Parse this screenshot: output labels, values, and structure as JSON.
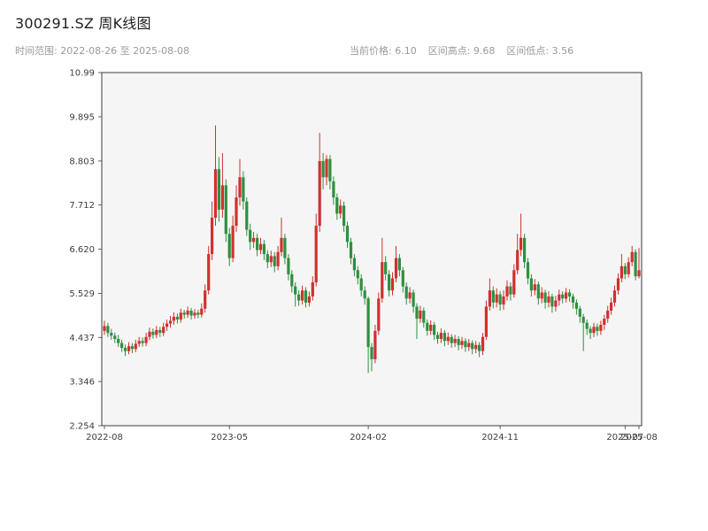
{
  "header": {
    "title": "300291.SZ 周K线图",
    "time_range": "时间范围: 2022-08-26 至 2025-08-08",
    "stats": [
      "当前价格: 6.10",
      "区间高点: 9.68",
      "区间低点: 3.56"
    ]
  },
  "chart_data": {
    "type": "candlestick",
    "title": "300291.SZ 周K线图",
    "frequency": "weekly",
    "date_range": [
      "2022-08-26",
      "2025-08-08"
    ],
    "current_price": 6.1,
    "range_high": 9.68,
    "range_low": 3.56,
    "xlabel": "",
    "ylabel": "",
    "grid": false,
    "ylim": [
      2.254,
      10.99
    ],
    "plot_bg": "#f5f5f5",
    "up_color": "#d03030",
    "down_color": "#2f8f3f",
    "y_ticks": [
      {
        "label": "10.99",
        "value": 10.99
      },
      {
        "label": "9.895",
        "value": 9.895
      },
      {
        "label": "8.803",
        "value": 8.803
      },
      {
        "label": "7.712",
        "value": 7.712
      },
      {
        "label": "6.620",
        "value": 6.62
      },
      {
        "label": "5.529",
        "value": 5.529
      },
      {
        "label": "4.437",
        "value": 4.437
      },
      {
        "label": "3.346",
        "value": 3.346
      },
      {
        "label": "2.254",
        "value": 2.254
      }
    ],
    "x_ticks": [
      {
        "label": "2022-08",
        "index": 0
      },
      {
        "label": "2023-05",
        "index": 36
      },
      {
        "label": "2024-02",
        "index": 76
      },
      {
        "label": "2024-11",
        "index": 114
      },
      {
        "label": "2025-07",
        "index": 150
      },
      {
        "label": "2025-08",
        "index": 154
      }
    ],
    "ohlc_format": [
      "open",
      "high",
      "low",
      "close"
    ],
    "ohlc": [
      [
        4.6,
        4.85,
        4.5,
        4.72
      ],
      [
        4.72,
        4.8,
        4.45,
        4.55
      ],
      [
        4.55,
        4.65,
        4.38,
        4.48
      ],
      [
        4.48,
        4.56,
        4.3,
        4.4
      ],
      [
        4.4,
        4.5,
        4.2,
        4.3
      ],
      [
        4.3,
        4.38,
        4.08,
        4.18
      ],
      [
        4.18,
        4.26,
        3.98,
        4.1
      ],
      [
        4.1,
        4.32,
        4.02,
        4.22
      ],
      [
        4.22,
        4.3,
        4.05,
        4.15
      ],
      [
        4.15,
        4.38,
        4.07,
        4.28
      ],
      [
        4.28,
        4.45,
        4.2,
        4.35
      ],
      [
        4.35,
        4.44,
        4.21,
        4.3
      ],
      [
        4.3,
        4.55,
        4.22,
        4.45
      ],
      [
        4.45,
        4.68,
        4.37,
        4.58
      ],
      [
        4.58,
        4.66,
        4.41,
        4.5
      ],
      [
        4.5,
        4.72,
        4.42,
        4.62
      ],
      [
        4.62,
        4.7,
        4.45,
        4.55
      ],
      [
        4.55,
        4.8,
        4.47,
        4.7
      ],
      [
        4.7,
        4.88,
        4.6,
        4.78
      ],
      [
        4.78,
        4.97,
        4.68,
        4.85
      ],
      [
        4.85,
        5.06,
        4.75,
        4.95
      ],
      [
        4.95,
        5.03,
        4.78,
        4.88
      ],
      [
        4.88,
        5.15,
        4.8,
        5.05
      ],
      [
        5.05,
        5.12,
        4.9,
        5.0
      ],
      [
        5.0,
        5.2,
        4.92,
        5.1
      ],
      [
        5.1,
        5.17,
        4.88,
        4.98
      ],
      [
        4.98,
        5.14,
        4.9,
        5.05
      ],
      [
        5.05,
        5.12,
        4.91,
        5.0
      ],
      [
        5.0,
        5.28,
        4.93,
        5.15
      ],
      [
        5.15,
        5.75,
        5.05,
        5.6
      ],
      [
        5.6,
        6.7,
        5.5,
        6.5
      ],
      [
        6.5,
        7.8,
        6.35,
        7.4
      ],
      [
        7.4,
        9.68,
        7.2,
        8.6
      ],
      [
        8.6,
        8.9,
        7.3,
        7.6
      ],
      [
        7.6,
        9.0,
        7.4,
        8.2
      ],
      [
        8.2,
        8.35,
        6.8,
        7.0
      ],
      [
        7.0,
        7.15,
        6.2,
        6.4
      ],
      [
        6.4,
        7.45,
        6.3,
        7.2
      ],
      [
        7.2,
        8.2,
        7.05,
        7.9
      ],
      [
        7.9,
        8.85,
        7.7,
        8.4
      ],
      [
        8.4,
        8.55,
        7.6,
        7.8
      ],
      [
        7.8,
        7.9,
        6.95,
        7.1
      ],
      [
        7.1,
        7.25,
        6.6,
        6.8
      ],
      [
        6.8,
        7.05,
        6.65,
        6.9
      ],
      [
        6.9,
        7.0,
        6.45,
        6.6
      ],
      [
        6.6,
        6.9,
        6.5,
        6.75
      ],
      [
        6.75,
        6.85,
        6.35,
        6.5
      ],
      [
        6.5,
        6.6,
        6.15,
        6.3
      ],
      [
        6.3,
        6.58,
        6.18,
        6.45
      ],
      [
        6.45,
        6.55,
        6.05,
        6.2
      ],
      [
        6.2,
        6.7,
        6.1,
        6.55
      ],
      [
        6.55,
        7.4,
        6.45,
        6.9
      ],
      [
        6.9,
        7.0,
        6.25,
        6.4
      ],
      [
        6.4,
        6.5,
        5.85,
        6.0
      ],
      [
        6.0,
        6.1,
        5.55,
        5.7
      ],
      [
        5.7,
        5.8,
        5.2,
        5.5
      ],
      [
        5.5,
        5.6,
        5.22,
        5.35
      ],
      [
        5.35,
        5.72,
        5.25,
        5.6
      ],
      [
        5.6,
        5.68,
        5.18,
        5.3
      ],
      [
        5.3,
        5.57,
        5.2,
        5.45
      ],
      [
        5.45,
        5.95,
        5.35,
        5.8
      ],
      [
        5.8,
        7.5,
        5.7,
        7.2
      ],
      [
        7.2,
        9.5,
        7.05,
        8.8
      ],
      [
        8.8,
        9.0,
        8.1,
        8.4
      ],
      [
        8.4,
        8.95,
        8.2,
        8.85
      ],
      [
        8.85,
        8.95,
        8.1,
        8.3
      ],
      [
        8.3,
        8.42,
        7.72,
        7.9
      ],
      [
        7.9,
        8.0,
        7.35,
        7.5
      ],
      [
        7.5,
        7.85,
        7.38,
        7.7
      ],
      [
        7.7,
        7.8,
        7.05,
        7.2
      ],
      [
        7.2,
        7.3,
        6.65,
        6.8
      ],
      [
        6.8,
        6.9,
        6.25,
        6.4
      ],
      [
        6.4,
        6.5,
        5.95,
        6.1
      ],
      [
        6.1,
        6.2,
        5.75,
        5.9
      ],
      [
        5.9,
        6.0,
        5.45,
        5.6
      ],
      [
        5.6,
        5.7,
        5.25,
        5.4
      ],
      [
        5.4,
        5.45,
        3.56,
        4.2
      ],
      [
        4.2,
        4.3,
        3.6,
        3.9
      ],
      [
        3.9,
        4.75,
        3.8,
        4.6
      ],
      [
        4.6,
        5.55,
        4.5,
        5.4
      ],
      [
        5.4,
        6.9,
        5.3,
        6.3
      ],
      [
        6.3,
        6.45,
        5.85,
        6.0
      ],
      [
        6.0,
        6.1,
        5.45,
        5.6
      ],
      [
        5.6,
        6.05,
        5.48,
        5.9
      ],
      [
        5.9,
        6.7,
        5.8,
        6.4
      ],
      [
        6.4,
        6.5,
        5.95,
        6.1
      ],
      [
        6.1,
        6.18,
        5.55,
        5.7
      ],
      [
        5.7,
        5.8,
        5.25,
        5.4
      ],
      [
        5.4,
        5.68,
        5.28,
        5.55
      ],
      [
        5.55,
        5.62,
        5.05,
        5.2
      ],
      [
        5.2,
        5.28,
        4.4,
        4.9
      ],
      [
        4.9,
        5.22,
        4.8,
        5.1
      ],
      [
        5.1,
        5.18,
        4.68,
        4.8
      ],
      [
        4.8,
        4.88,
        4.48,
        4.6
      ],
      [
        4.6,
        4.86,
        4.5,
        4.75
      ],
      [
        4.75,
        4.82,
        4.38,
        4.5
      ],
      [
        4.5,
        4.58,
        4.28,
        4.4
      ],
      [
        4.4,
        4.66,
        4.3,
        4.55
      ],
      [
        4.55,
        4.62,
        4.22,
        4.35
      ],
      [
        4.35,
        4.56,
        4.25,
        4.45
      ],
      [
        4.45,
        4.52,
        4.18,
        4.3
      ],
      [
        4.3,
        4.5,
        4.2,
        4.4
      ],
      [
        4.4,
        4.47,
        4.12,
        4.25
      ],
      [
        4.25,
        4.45,
        4.15,
        4.35
      ],
      [
        4.35,
        4.42,
        4.08,
        4.2
      ],
      [
        4.2,
        4.4,
        4.1,
        4.3
      ],
      [
        4.3,
        4.37,
        4.02,
        4.15
      ],
      [
        4.15,
        4.35,
        4.05,
        4.25
      ],
      [
        4.25,
        4.32,
        3.95,
        4.1
      ],
      [
        4.1,
        4.55,
        4.0,
        4.45
      ],
      [
        4.45,
        5.35,
        4.38,
        5.2
      ],
      [
        5.2,
        5.9,
        5.1,
        5.6
      ],
      [
        5.6,
        5.7,
        5.15,
        5.3
      ],
      [
        5.3,
        5.65,
        5.18,
        5.5
      ],
      [
        5.5,
        5.58,
        5.1,
        5.25
      ],
      [
        5.25,
        5.6,
        5.12,
        5.45
      ],
      [
        5.45,
        5.85,
        5.35,
        5.7
      ],
      [
        5.7,
        5.8,
        5.35,
        5.5
      ],
      [
        5.5,
        6.25,
        5.42,
        6.1
      ],
      [
        6.1,
        7.0,
        6.0,
        6.6
      ],
      [
        6.6,
        7.5,
        6.45,
        6.9
      ],
      [
        6.9,
        7.0,
        6.15,
        6.3
      ],
      [
        6.3,
        6.4,
        5.75,
        5.9
      ],
      [
        5.9,
        6.0,
        5.45,
        5.6
      ],
      [
        5.6,
        5.88,
        5.48,
        5.75
      ],
      [
        5.75,
        5.82,
        5.25,
        5.4
      ],
      [
        5.4,
        5.68,
        5.28,
        5.55
      ],
      [
        5.55,
        5.62,
        5.15,
        5.3
      ],
      [
        5.3,
        5.58,
        5.18,
        5.45
      ],
      [
        5.45,
        5.52,
        5.05,
        5.2
      ],
      [
        5.2,
        5.47,
        5.08,
        5.35
      ],
      [
        5.35,
        5.62,
        5.22,
        5.5
      ],
      [
        5.5,
        5.58,
        5.28,
        5.4
      ],
      [
        5.4,
        5.66,
        5.3,
        5.55
      ],
      [
        5.55,
        5.63,
        5.32,
        5.45
      ],
      [
        5.45,
        5.52,
        5.15,
        5.3
      ],
      [
        5.3,
        5.38,
        5.0,
        5.15
      ],
      [
        5.15,
        5.22,
        4.8,
        4.95
      ],
      [
        4.95,
        5.02,
        4.1,
        4.8
      ],
      [
        4.8,
        4.88,
        4.5,
        4.65
      ],
      [
        4.65,
        4.72,
        4.4,
        4.55
      ],
      [
        4.55,
        4.8,
        4.45,
        4.7
      ],
      [
        4.7,
        4.78,
        4.48,
        4.6
      ],
      [
        4.6,
        4.85,
        4.5,
        4.75
      ],
      [
        4.75,
        5.0,
        4.62,
        4.9
      ],
      [
        4.9,
        5.22,
        4.8,
        5.1
      ],
      [
        5.1,
        5.42,
        5.0,
        5.3
      ],
      [
        5.3,
        5.72,
        5.2,
        5.6
      ],
      [
        5.6,
        6.02,
        5.5,
        5.9
      ],
      [
        5.9,
        6.5,
        5.8,
        6.2
      ],
      [
        6.2,
        6.28,
        5.88,
        6.0
      ],
      [
        6.0,
        6.42,
        5.92,
        6.3
      ],
      [
        6.3,
        6.7,
        6.2,
        6.55
      ],
      [
        6.55,
        6.62,
        5.85,
        5.95
      ],
      [
        5.95,
        6.65,
        5.9,
        6.1
      ]
    ]
  }
}
